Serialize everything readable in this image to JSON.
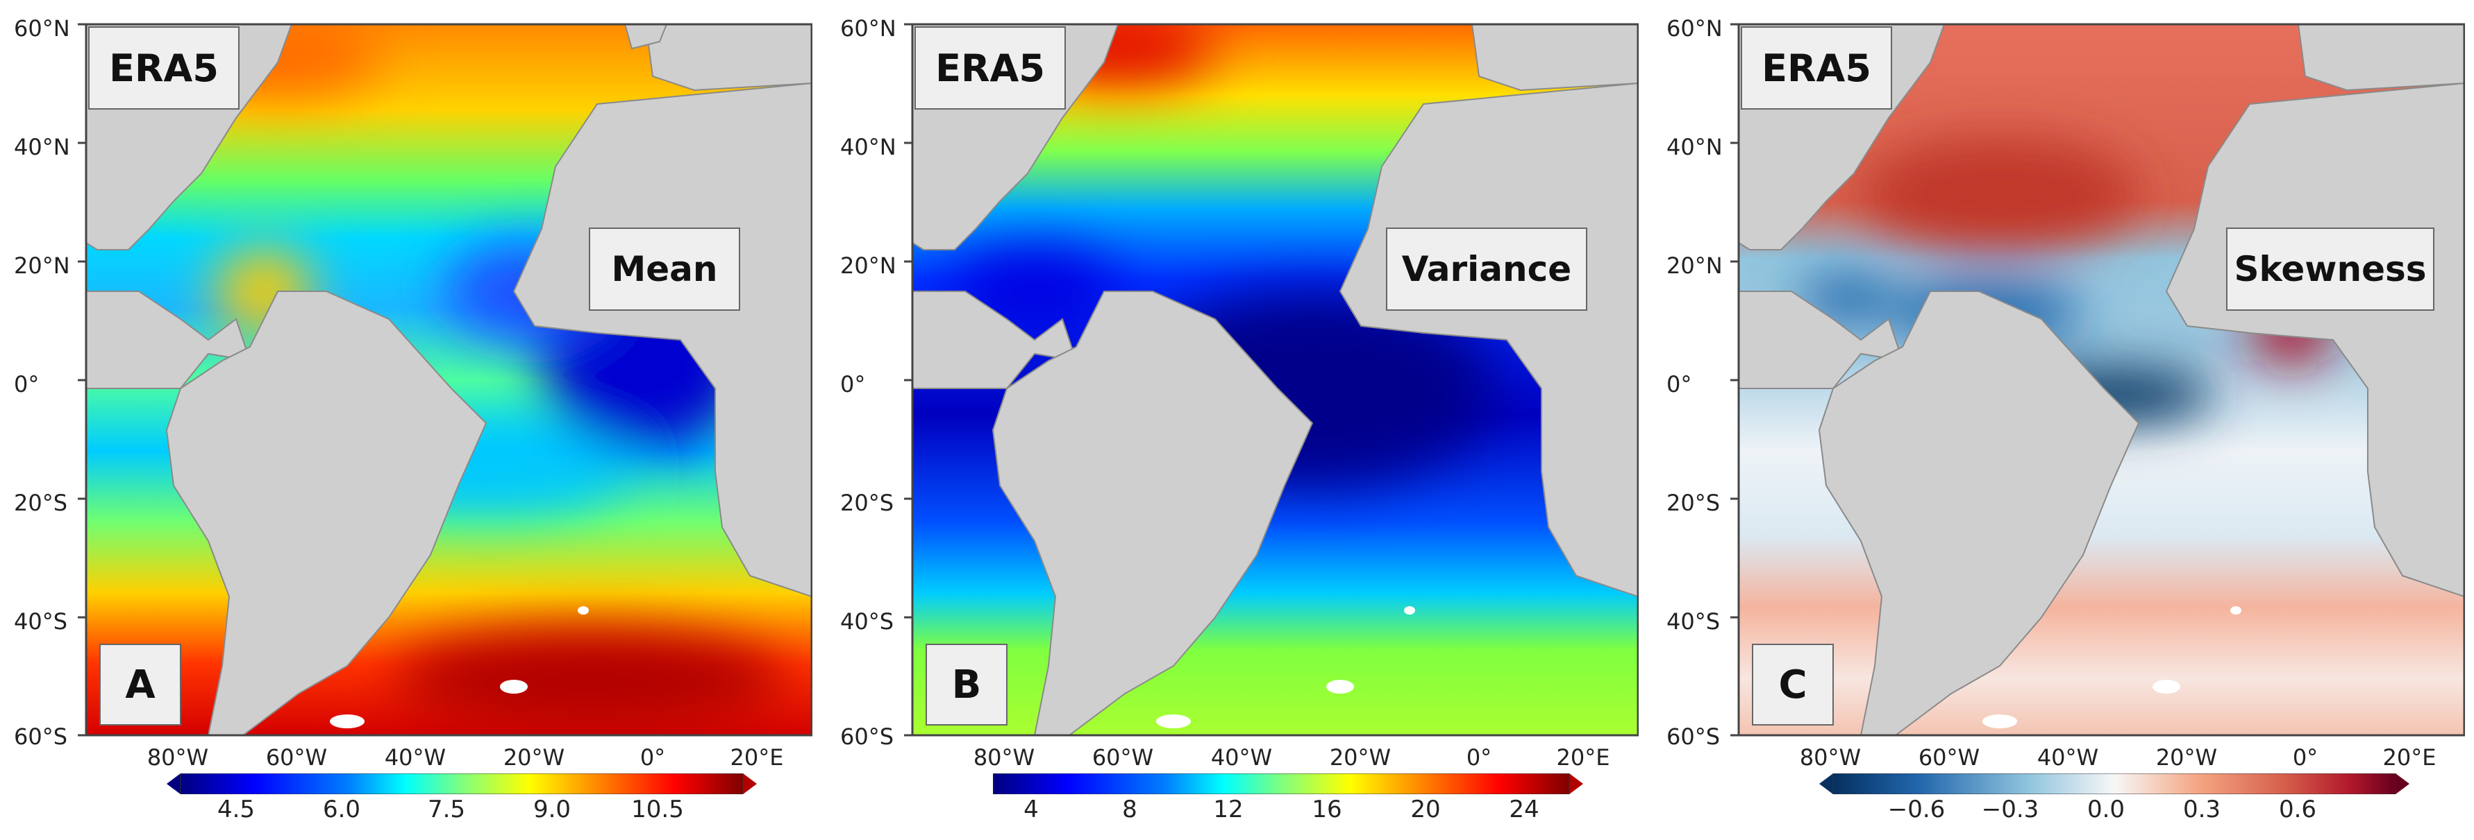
{
  "lat_ticks": [
    "60°N",
    "40°N",
    "20°N",
    "0°",
    "20°S",
    "40°S",
    "60°S"
  ],
  "lon_ticks": [
    "80°W",
    "60°W",
    "40°W",
    "20°W",
    "0°",
    "20°E"
  ],
  "panels": [
    {
      "id": "A",
      "dataset": "ERA5",
      "statistic": "Mean",
      "letter": "A",
      "colormap": "jet",
      "colorbar": {
        "ticks": [
          "4.5",
          "6.0",
          "7.5",
          "9.0",
          "10.5"
        ],
        "extend": "both"
      }
    },
    {
      "id": "B",
      "dataset": "ERA5",
      "statistic": "Variance",
      "letter": "B",
      "colormap": "jet",
      "colorbar": {
        "ticks": [
          "4",
          "8",
          "12",
          "16",
          "20",
          "24"
        ],
        "extend": "max"
      }
    },
    {
      "id": "C",
      "dataset": "ERA5",
      "statistic": "Skewness",
      "letter": "C",
      "colormap": "RdBu_r",
      "colorbar": {
        "ticks": [
          "−0.6",
          "−0.3",
          "0.0",
          "0.3",
          "0.6"
        ],
        "extend": "both"
      }
    }
  ],
  "colors": {
    "land": "#cfcfcf",
    "land_border": "#8a8a8a",
    "jet": [
      "#00007f",
      "#0000ff",
      "#007fff",
      "#00ffff",
      "#7fff7f",
      "#ffff00",
      "#ff7f00",
      "#ff0000",
      "#7f0000"
    ],
    "rdbu": [
      "#053061",
      "#2166ac",
      "#92c5de",
      "#f7f7f7",
      "#f4a582",
      "#d6604d",
      "#b2182b",
      "#67001f"
    ]
  }
}
